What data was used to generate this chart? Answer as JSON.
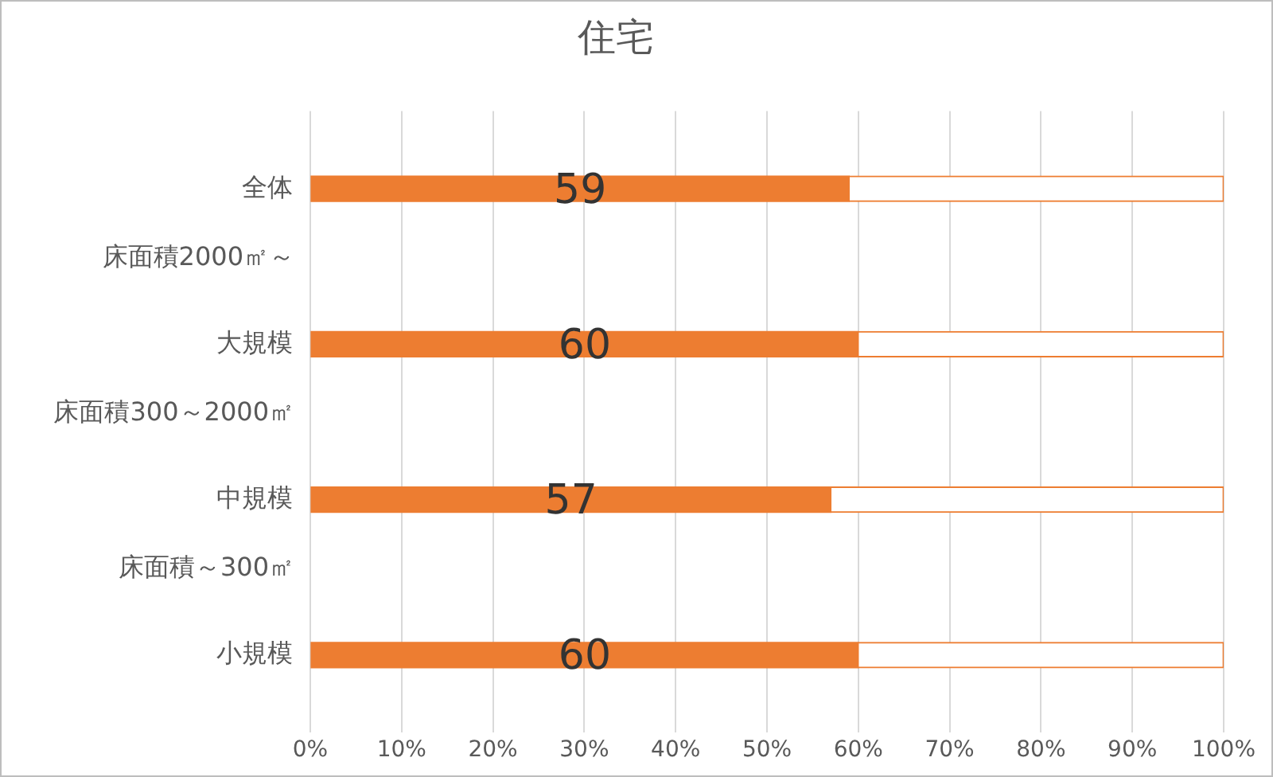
{
  "chart_data": {
    "type": "bar",
    "title": "住宅",
    "orientation": "horizontal",
    "stacked": true,
    "categories": [
      "全体",
      "大規模",
      "中規模",
      "小規模"
    ],
    "annotations": [
      "床面積2000㎡～",
      "床面積300～2000㎡",
      "床面積～300㎡"
    ],
    "series": [
      {
        "color": "#ed7d31",
        "values": [
          59,
          60,
          57,
          60
        ],
        "value_labels": [
          "59",
          "60",
          "57",
          "60"
        ]
      },
      {
        "color": "#ffffff",
        "values": [
          41,
          40,
          43,
          40
        ]
      }
    ],
    "xlim": [
      0,
      100
    ],
    "xticks": [
      {
        "value": 0,
        "label": "0%"
      },
      {
        "value": 10,
        "label": "10%"
      },
      {
        "value": 20,
        "label": "20%"
      },
      {
        "value": 30,
        "label": "30%"
      },
      {
        "value": 40,
        "label": "40%"
      },
      {
        "value": 50,
        "label": "50%"
      },
      {
        "value": 60,
        "label": "60%"
      },
      {
        "value": 70,
        "label": "70%"
      },
      {
        "value": 80,
        "label": "80%"
      },
      {
        "value": 90,
        "label": "90%"
      },
      {
        "value": 100,
        "label": "100%"
      }
    ],
    "grid": "x",
    "legend": false
  }
}
